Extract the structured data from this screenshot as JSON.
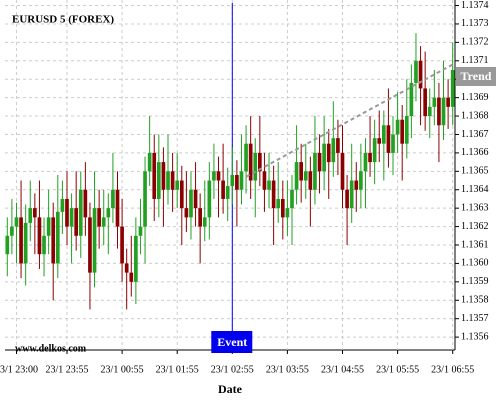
{
  "chart_data": {
    "type": "candlestick",
    "title": "EURUSD 5 (FOREX)",
    "x_label": "Date",
    "watermark": "www.delkos.com",
    "event": {
      "label": "Event",
      "color": "#0000ee"
    },
    "trend": {
      "label": "Trend",
      "values": [
        1.13647,
        1.13708
      ],
      "color": "#999999"
    },
    "up_color": "#22a022",
    "down_color": "#8b0000",
    "grid": true,
    "categories": [
      null,
      null,
      "23/1 23:00",
      null,
      null,
      null,
      null,
      null,
      null,
      null,
      null,
      null,
      null,
      "23/1 23:55",
      null,
      null,
      null,
      null,
      null,
      null,
      null,
      null,
      null,
      null,
      null,
      "23/1 00:55",
      null,
      null,
      null,
      null,
      null,
      null,
      null,
      null,
      null,
      null,
      null,
      "23/1 01:55",
      null,
      null,
      null,
      null,
      null,
      null,
      null,
      null,
      null,
      null,
      null,
      "23/1 02:55",
      null,
      null,
      null,
      null,
      null,
      null,
      null,
      null,
      null,
      null,
      null,
      "23/1 03:55",
      null,
      null,
      null,
      null,
      null,
      null,
      null,
      null,
      null,
      null,
      null,
      "23/1 04:55",
      null,
      null,
      null,
      null,
      null,
      null,
      null,
      null,
      null,
      null,
      null,
      "23/1 05:55",
      null,
      null,
      null,
      null,
      null,
      null,
      null,
      null,
      null,
      null,
      null,
      "23/1 06:55"
    ],
    "open": [
      1.13605,
      1.13615,
      1.1362,
      1.13625,
      1.136,
      1.13622,
      1.1363,
      1.13625,
      1.13605,
      1.13615,
      1.13625,
      1.136,
      1.13628,
      1.13635,
      1.1362,
      1.1363,
      1.13615,
      1.1364,
      1.13625,
      1.13595,
      1.1363,
      1.1362,
      1.13625,
      1.1363,
      1.1364,
      1.1362,
      1.136,
      1.13595,
      1.1359,
      1.13615,
      1.1362,
      1.1365,
      1.1366,
      1.13635,
      1.13655,
      1.1364,
      1.1365,
      1.1364,
      1.13645,
      1.1363,
      1.13625,
      1.1364,
      1.1363,
      1.1362,
      1.13625,
      1.13645,
      1.1365,
      1.13645,
      1.13635,
      1.13642,
      1.13648,
      1.1364,
      1.1365,
      1.13665,
      1.13645,
      1.1366,
      1.1365,
      1.1364,
      1.13645,
      1.1363,
      1.13635,
      1.13625,
      1.1363,
      1.1364,
      1.13655,
      1.13645,
      1.1365,
      1.1364,
      1.1366,
      1.1365,
      1.13665,
      1.13655,
      1.13668,
      1.1366,
      1.1364,
      1.1363,
      1.13645,
      1.1364,
      1.1365,
      1.1366,
      1.13655,
      1.13668,
      1.13665,
      1.13675,
      1.1366,
      1.1367,
      1.13678,
      1.13665,
      1.1368,
      1.13698,
      1.1371,
      1.13695,
      1.1368,
      1.13685,
      1.1369,
      1.13675,
      1.1369,
      1.13685
    ],
    "high": [
      1.13625,
      1.13635,
      1.13633,
      1.13645,
      1.13632,
      1.13645,
      1.13638,
      1.13645,
      1.13625,
      1.1364,
      1.13633,
      1.13648,
      1.13645,
      1.1365,
      1.13638,
      1.1365,
      1.1365,
      1.13655,
      1.13633,
      1.1365,
      1.1364,
      1.1364,
      1.13638,
      1.1366,
      1.1365,
      1.13635,
      1.13608,
      1.13615,
      1.13625,
      1.13635,
      1.13658,
      1.1368,
      1.1367,
      1.1367,
      1.13663,
      1.1367,
      1.1366,
      1.1366,
      1.13653,
      1.1365,
      1.1365,
      1.13655,
      1.13638,
      1.13645,
      1.13655,
      1.13665,
      1.13658,
      1.13665,
      1.13652,
      1.13663,
      1.13656,
      1.1367,
      1.13675,
      1.1368,
      1.13668,
      1.1368,
      1.1366,
      1.1366,
      1.13653,
      1.13655,
      1.13645,
      1.13645,
      1.13648,
      1.13675,
      1.13665,
      1.13665,
      1.13658,
      1.1368,
      1.1367,
      1.1368,
      1.13673,
      1.13688,
      1.13678,
      1.13675,
      1.13648,
      1.13665,
      1.13655,
      1.13665,
      1.13668,
      1.1368,
      1.13678,
      1.13683,
      1.13683,
      1.13695,
      1.1368,
      1.13693,
      1.13686,
      1.137,
      1.13708,
      1.13725,
      1.13718,
      1.13715,
      1.13695,
      1.13705,
      1.13698,
      1.1371,
      1.137,
      1.1372
    ],
    "low": [
      1.13593,
      1.13605,
      1.136,
      1.13592,
      1.13588,
      1.13612,
      1.13605,
      1.13597,
      1.13593,
      1.13605,
      1.1358,
      1.13592,
      1.13616,
      1.1361,
      1.136,
      1.13607,
      1.13603,
      1.13615,
      1.13575,
      1.13587,
      1.13608,
      1.1361,
      1.13605,
      1.13622,
      1.13608,
      1.1359,
      1.13575,
      1.13582,
      1.13578,
      1.13605,
      1.136,
      1.13642,
      1.13623,
      1.13625,
      1.1362,
      1.13632,
      1.13628,
      1.1363,
      1.1361,
      1.13617,
      1.13613,
      1.1362,
      1.136,
      1.13612,
      1.13613,
      1.13635,
      1.13625,
      1.13627,
      1.13623,
      1.13632,
      1.1362,
      1.13632,
      1.13638,
      1.13635,
      1.13625,
      1.13642,
      1.13628,
      1.1363,
      1.1361,
      1.13622,
      1.13613,
      1.13615,
      1.1361,
      1.13632,
      1.13633,
      1.13635,
      1.1362,
      1.13632,
      1.13638,
      1.1364,
      1.13635,
      1.13647,
      1.13648,
      1.1363,
      1.1361,
      1.13622,
      1.13628,
      1.1363,
      1.1363,
      1.13647,
      1.13643,
      1.13655,
      1.13645,
      1.13652,
      1.13648,
      1.1366,
      1.13645,
      1.13657,
      1.13668,
      1.13688,
      1.13675,
      1.13672,
      1.13668,
      1.13675,
      1.13655,
      1.13667,
      1.13673,
      1.13675
    ],
    "close": [
      1.13615,
      1.1362,
      1.13625,
      1.136,
      1.13622,
      1.1363,
      1.13625,
      1.13605,
      1.13615,
      1.13625,
      1.136,
      1.13628,
      1.13635,
      1.1362,
      1.1363,
      1.13615,
      1.1364,
      1.13625,
      1.13595,
      1.1363,
      1.1362,
      1.13625,
      1.1363,
      1.1364,
      1.1362,
      1.136,
      1.13595,
      1.1359,
      1.13615,
      1.1362,
      1.1365,
      1.1366,
      1.13635,
      1.13655,
      1.1364,
      1.1365,
      1.1364,
      1.13645,
      1.1363,
      1.13625,
      1.1364,
      1.1363,
      1.1362,
      1.13625,
      1.13645,
      1.1365,
      1.13645,
      1.13635,
      1.13642,
      1.13648,
      1.1364,
      1.1365,
      1.13665,
      1.13645,
      1.1366,
      1.1365,
      1.1364,
      1.13645,
      1.1363,
      1.13635,
      1.13625,
      1.1363,
      1.1364,
      1.13655,
      1.13645,
      1.1365,
      1.1364,
      1.1366,
      1.1365,
      1.13665,
      1.13655,
      1.13668,
      1.1366,
      1.1364,
      1.1363,
      1.13645,
      1.1364,
      1.1365,
      1.1366,
      1.13655,
      1.13668,
      1.13665,
      1.13675,
      1.1366,
      1.1367,
      1.13678,
      1.13665,
      1.1368,
      1.13698,
      1.1371,
      1.13695,
      1.1368,
      1.13685,
      1.1369,
      1.13675,
      1.1369,
      1.13685,
      1.13705
    ],
    "ylim": [
      1.13553,
      1.13743
    ],
    "yticks": [
      1.1356,
      1.1357,
      1.1358,
      1.1359,
      {
        "value": 1.136,
        "label": "1.1360"
      },
      1.1361,
      1.1362,
      1.1363,
      1.1364,
      1.1365,
      1.1366,
      1.1367,
      1.1368,
      1.1369,
      {
        "value": 1.137,
        "label": "1.1370"
      },
      1.1371,
      1.1372,
      1.1373,
      1.1374
    ]
  }
}
